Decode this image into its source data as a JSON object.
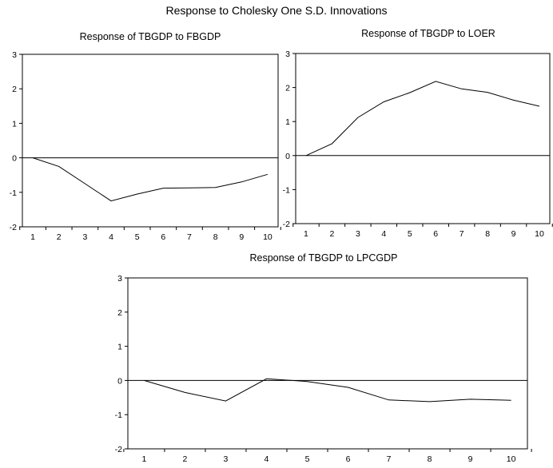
{
  "figure_title": "Response to Cholesky One S.D. Innovations",
  "chart_data": [
    {
      "type": "line",
      "title": "Response of TBGDP to FBGDP",
      "x": [
        1,
        2,
        3,
        4,
        5,
        6,
        7,
        8,
        9,
        10
      ],
      "series": [
        {
          "values": [
            0.0,
            -0.25,
            -0.75,
            -1.25,
            -1.05,
            -0.88,
            -0.87,
            -0.86,
            -0.7,
            -0.48
          ]
        }
      ],
      "xlim": [
        0.6,
        10.4
      ],
      "ylim": [
        -2,
        3
      ],
      "yticks": [
        -2,
        -1,
        0,
        1,
        2,
        3
      ],
      "zero_line": true,
      "grid": false
    },
    {
      "type": "line",
      "title": "Response of TBGDP to LOER",
      "x": [
        1,
        2,
        3,
        4,
        5,
        6,
        7,
        8,
        9,
        10
      ],
      "series": [
        {
          "values": [
            0.0,
            0.35,
            1.12,
            1.58,
            1.85,
            2.18,
            1.96,
            1.86,
            1.63,
            1.45
          ]
        }
      ],
      "xlim": [
        0.6,
        10.4
      ],
      "ylim": [
        -2,
        3
      ],
      "yticks": [
        -2,
        -1,
        0,
        1,
        2,
        3
      ],
      "zero_line": true,
      "grid": false
    },
    {
      "type": "line",
      "title": "Response of TBGDP to LPCGDP",
      "x": [
        1,
        2,
        3,
        4,
        5,
        6,
        7,
        8,
        9,
        10
      ],
      "series": [
        {
          "values": [
            0.0,
            -0.35,
            -0.6,
            0.05,
            -0.03,
            -0.2,
            -0.57,
            -0.62,
            -0.55,
            -0.58
          ]
        }
      ],
      "xlim": [
        0.6,
        10.4
      ],
      "ylim": [
        -2,
        3
      ],
      "yticks": [
        -2,
        -1,
        0,
        1,
        2,
        3
      ],
      "zero_line": true,
      "grid": false
    }
  ]
}
